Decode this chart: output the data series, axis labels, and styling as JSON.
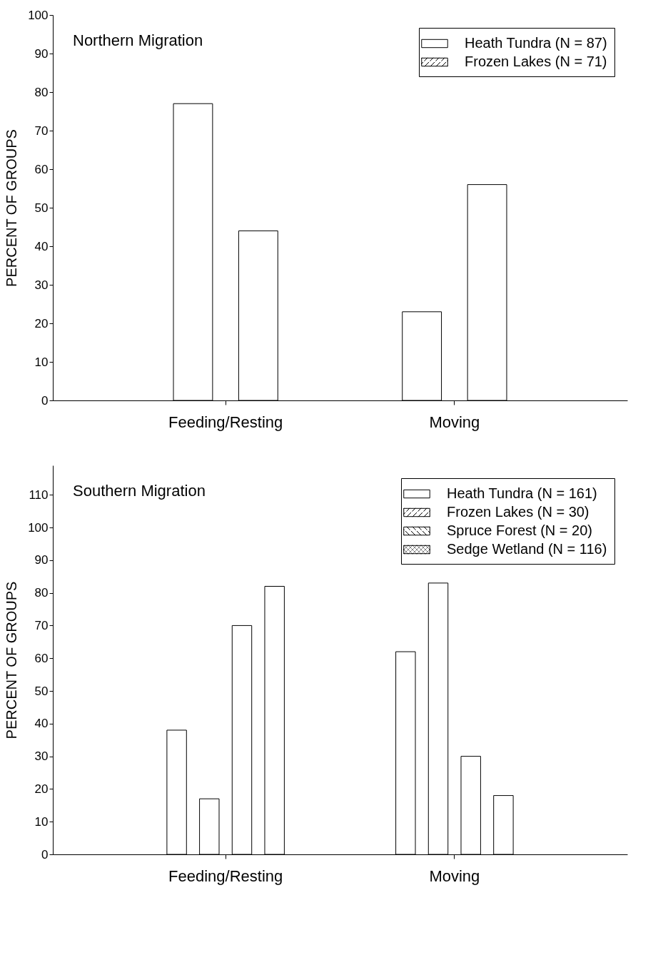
{
  "chart_data": [
    {
      "type": "bar",
      "title": "Northern Migration",
      "ylabel": "PERCENT OF GROUPS",
      "categories": [
        "Feeding/Resting",
        "Moving"
      ],
      "ylim": [
        0,
        100
      ],
      "yticks": [
        0,
        10,
        20,
        30,
        40,
        50,
        60,
        70,
        80,
        90,
        100
      ],
      "legend": "top right",
      "series": [
        {
          "name": "Heath Tundra (N = 87)",
          "color": "#ffffff",
          "values": [
            77,
            23
          ]
        },
        {
          "name": "Frozen Lakes (N = 71)",
          "color": "#ffffff",
          "values": [
            44,
            56
          ]
        }
      ]
    },
    {
      "type": "bar",
      "title": "Southern Migration",
      "ylabel": "PERCENT OF GROUPS",
      "categories": [
        "Feeding/Resting",
        "Moving"
      ],
      "ylim": [
        0,
        119
      ],
      "yticks": [
        0,
        10,
        20,
        30,
        40,
        50,
        60,
        70,
        80,
        90,
        100,
        110
      ],
      "legend": "top right",
      "series": [
        {
          "name": "Heath Tundra (N = 161)",
          "color": "#ffffff",
          "values": [
            38,
            62
          ]
        },
        {
          "name": "Frozen Lakes (N = 30)",
          "color": "#ffffff",
          "values": [
            17,
            83
          ]
        },
        {
          "name": "Spruce Forest (N = 20)",
          "color": "#ffffff",
          "values": [
            70,
            30
          ]
        },
        {
          "name": "Sedge Wetland (N = 116)",
          "color": "#ffffff",
          "values": [
            82,
            18
          ]
        }
      ]
    }
  ]
}
